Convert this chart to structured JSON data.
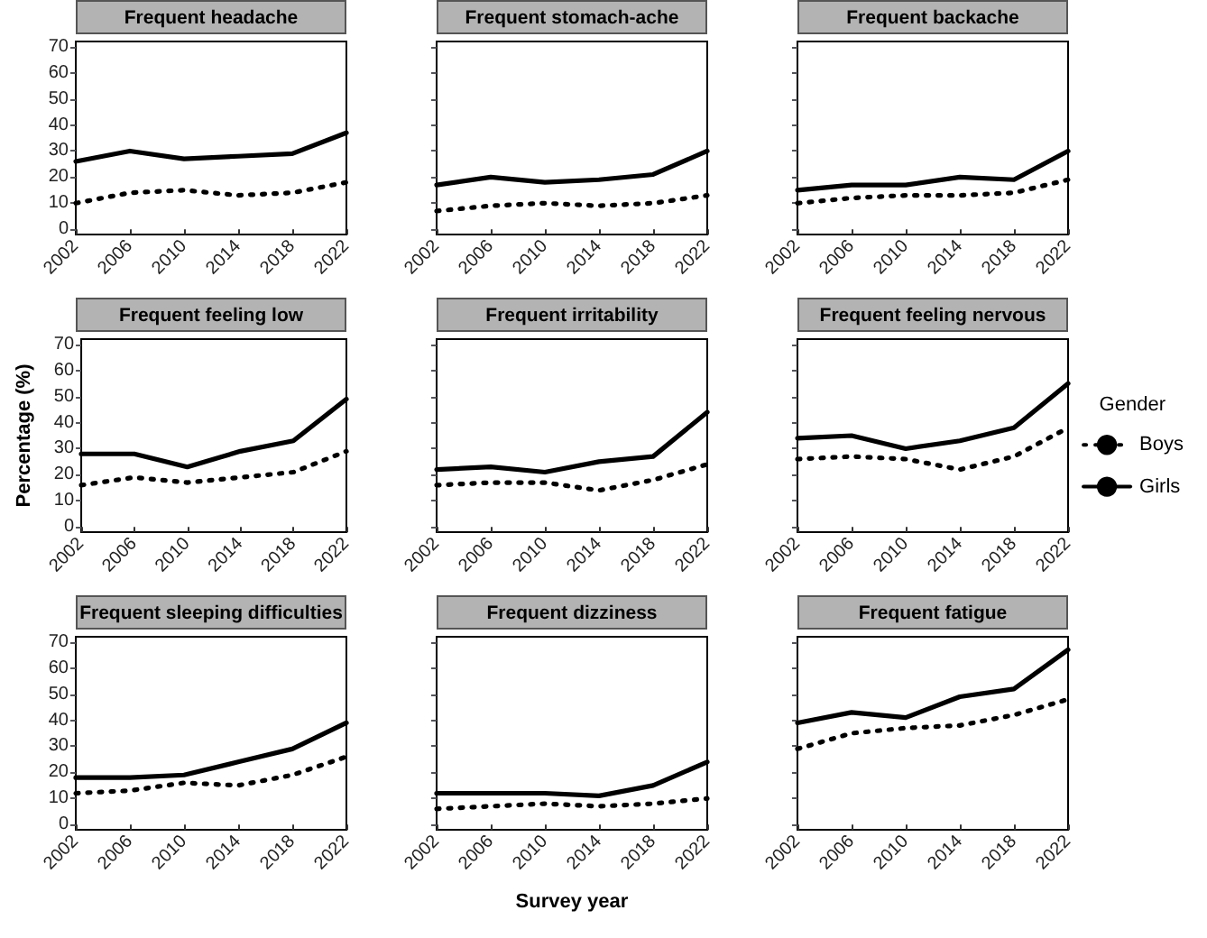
{
  "chart_data": [
    {
      "type": "line",
      "title": "Frequent headache",
      "categories": [
        "2002",
        "2006",
        "2010",
        "2014",
        "2018",
        "2022"
      ],
      "ylim": [
        -2,
        72
      ],
      "yticks": [
        0,
        10,
        20,
        30,
        40,
        50,
        60,
        70
      ],
      "grid": false,
      "marker": "none",
      "legend": false,
      "series": [
        {
          "color": "#000000",
          "line_style": "dotted",
          "values": [
            10,
            14,
            15,
            13,
            14,
            18
          ]
        },
        {
          "color": "#000000",
          "line_style": "solid",
          "values": [
            26,
            30,
            27,
            28,
            29,
            37
          ]
        }
      ]
    },
    {
      "type": "line",
      "title": "Frequent stomach-ache",
      "categories": [
        "2002",
        "2006",
        "2010",
        "2014",
        "2018",
        "2022"
      ],
      "ylim": [
        -2,
        72
      ],
      "yticks": [
        0,
        10,
        20,
        30,
        40,
        50,
        60,
        70
      ],
      "grid": false,
      "marker": "none",
      "legend": false,
      "tick_labels": "x",
      "series": [
        {
          "color": "#000000",
          "line_style": "dotted",
          "values": [
            7,
            9,
            10,
            9,
            10,
            13
          ]
        },
        {
          "color": "#000000",
          "line_style": "solid",
          "values": [
            17,
            20,
            18,
            19,
            21,
            30
          ]
        }
      ]
    },
    {
      "type": "line",
      "title": "Frequent backache",
      "categories": [
        "2002",
        "2006",
        "2010",
        "2014",
        "2018",
        "2022"
      ],
      "ylim": [
        -2,
        72
      ],
      "yticks": [
        0,
        10,
        20,
        30,
        40,
        50,
        60,
        70
      ],
      "grid": false,
      "marker": "none",
      "legend": false,
      "tick_labels": "x",
      "series": [
        {
          "color": "#000000",
          "line_style": "dotted",
          "values": [
            10,
            12,
            13,
            13,
            14,
            19
          ]
        },
        {
          "color": "#000000",
          "line_style": "solid",
          "values": [
            15,
            17,
            17,
            20,
            19,
            30
          ]
        }
      ]
    },
    {
      "type": "line",
      "title": "Frequent feeling low",
      "ylabel": "Percentage (%)",
      "categories": [
        "2002",
        "2006",
        "2010",
        "2014",
        "2018",
        "2022"
      ],
      "ylim": [
        -2,
        72
      ],
      "yticks": [
        0,
        10,
        20,
        30,
        40,
        50,
        60,
        70
      ],
      "grid": false,
      "marker": "none",
      "legend": false,
      "series": [
        {
          "color": "#000000",
          "line_style": "dotted",
          "values": [
            16,
            19,
            17,
            19,
            21,
            29
          ]
        },
        {
          "color": "#000000",
          "line_style": "solid",
          "values": [
            28,
            28,
            23,
            29,
            33,
            49
          ]
        }
      ]
    },
    {
      "type": "line",
      "title": "Frequent irritability",
      "categories": [
        "2002",
        "2006",
        "2010",
        "2014",
        "2018",
        "2022"
      ],
      "ylim": [
        -2,
        72
      ],
      "yticks": [
        0,
        10,
        20,
        30,
        40,
        50,
        60,
        70
      ],
      "grid": false,
      "marker": "none",
      "legend": false,
      "tick_labels": "x",
      "series": [
        {
          "color": "#000000",
          "line_style": "dotted",
          "values": [
            16,
            17,
            17,
            14,
            18,
            24
          ]
        },
        {
          "color": "#000000",
          "line_style": "solid",
          "values": [
            22,
            23,
            21,
            25,
            27,
            44
          ]
        }
      ]
    },
    {
      "type": "line",
      "title": "Frequent feeling nervous",
      "categories": [
        "2002",
        "2006",
        "2010",
        "2014",
        "2018",
        "2022"
      ],
      "ylim": [
        -2,
        72
      ],
      "yticks": [
        0,
        10,
        20,
        30,
        40,
        50,
        60,
        70
      ],
      "grid": false,
      "marker": "none",
      "legend": "right",
      "legend_title": "Gender",
      "tick_labels": "x",
      "series": [
        {
          "name": "Boys",
          "color": "#000000",
          "line_style": "dotted",
          "values": [
            26,
            27,
            26,
            22,
            27,
            38
          ]
        },
        {
          "name": "Girls",
          "color": "#000000",
          "line_style": "solid",
          "values": [
            34,
            35,
            30,
            33,
            38,
            55
          ]
        }
      ]
    },
    {
      "type": "line",
      "title": "Frequent sleeping difficulties",
      "categories": [
        "2002",
        "2006",
        "2010",
        "2014",
        "2018",
        "2022"
      ],
      "ylim": [
        -2,
        72
      ],
      "yticks": [
        0,
        10,
        20,
        30,
        40,
        50,
        60,
        70
      ],
      "grid": false,
      "marker": "none",
      "legend": false,
      "series": [
        {
          "color": "#000000",
          "line_style": "dotted",
          "values": [
            12,
            13,
            16,
            15,
            19,
            26
          ]
        },
        {
          "color": "#000000",
          "line_style": "solid",
          "values": [
            18,
            18,
            19,
            24,
            29,
            39
          ]
        }
      ]
    },
    {
      "type": "line",
      "title": "Frequent dizziness",
      "xlabel": "Survey year",
      "categories": [
        "2002",
        "2006",
        "2010",
        "2014",
        "2018",
        "2022"
      ],
      "ylim": [
        -2,
        72
      ],
      "yticks": [
        0,
        10,
        20,
        30,
        40,
        50,
        60,
        70
      ],
      "grid": false,
      "marker": "none",
      "legend": false,
      "tick_labels": "x",
      "series": [
        {
          "color": "#000000",
          "line_style": "dotted",
          "values": [
            6,
            7,
            8,
            7,
            8,
            10
          ]
        },
        {
          "color": "#000000",
          "line_style": "solid",
          "values": [
            12,
            12,
            12,
            11,
            15,
            24
          ]
        }
      ]
    },
    {
      "type": "line",
      "title": "Frequent fatigue",
      "categories": [
        "2002",
        "2006",
        "2010",
        "2014",
        "2018",
        "2022"
      ],
      "ylim": [
        -2,
        72
      ],
      "yticks": [
        0,
        10,
        20,
        30,
        40,
        50,
        60,
        70
      ],
      "grid": false,
      "marker": "none",
      "legend": false,
      "tick_labels": "x",
      "series": [
        {
          "color": "#000000",
          "line_style": "dotted",
          "values": [
            29,
            35,
            37,
            38,
            42,
            48
          ]
        },
        {
          "color": "#000000",
          "line_style": "solid",
          "values": [
            39,
            43,
            41,
            49,
            52,
            67
          ]
        }
      ]
    }
  ]
}
